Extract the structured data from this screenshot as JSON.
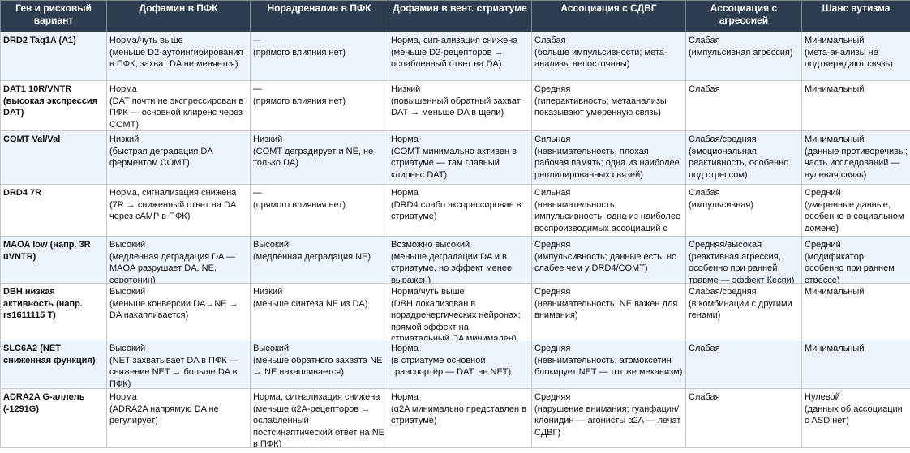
{
  "headers": [
    "Ген и рисковый вариант",
    "Дофамин в ПФК",
    "Норадреналин в ПФК",
    "Дофамин в вент. стриатуме",
    "Ассоциация с СДВГ",
    "Ассоциация с агрессией",
    "Шанс аутизма"
  ],
  "rows": [
    [
      "DRD2 Taq1A (A1)",
      "Норма/чуть выше\n(меньше D2-аутоингибирования в ПФК, захват DA не меняется)",
      "—\n(прямого влияния нет)",
      "Норма, сигнализация снижена\n(меньше D2-рецепторов → ослабленный ответ на DA)",
      "Слабая\n(больше импульсивности; мета-анализы непостоянны)",
      "Слабая\n(импульсивная агрессия)",
      "Минимальный\n(мета-анализы не подтверждают связь)"
    ],
    [
      "DAT1 10R/VNTR (высокая экспрессия DAT)",
      "Норма\n(DAT почти не экспрессирован в ПФК — основной клиренс через COMT)",
      "—\n(прямого влияния нет)",
      "Низкий\n(повышенный обратный захват DAT → меньше DA в щели)",
      "Средняя\n(гиперактивность; метаанализы показывают умеренную связь)",
      "Слабая",
      "Минимальный"
    ],
    [
      "COMT Val/Val",
      "Низкий\n(быстрая деградация DA ферментом COMT)",
      "Низкий\n(COMT деградирует и NE, не только DA)",
      "Норма\n(COMT минимально активен в стриатуме — там главный клиренс DAT)",
      "Сильная\n(невнимательность, плохая рабочая память; одна из наиболее реплицированных связей)",
      "Слабая/средняя\n(эмоциональная реактивность, особенно под стрессом)",
      "Минимальный\n(данные противоречивы; часть исследований — нулевая связь)"
    ],
    [
      "DRD4 7R",
      "Норма, сигнализация снижена\n(7R → сниженный ответ на DA через cAMP в ПФК)",
      "—\n(прямого влияния нет)",
      "Норма\n(DRD4 слабо экспрессирован в стриатуме)",
      "Сильная\n(невнимательность, импульсивность; одна из наиболее воспроизводимых ассоциаций с СДВГ)",
      "Слабая\n(импульсивная)",
      "Средний\n(умеренные данные, особенно в социальном домене)"
    ],
    [
      "MAOA low (напр. 3R uVNTR)",
      "Высокий\n(медленная деградация DA — MAOA разрушает DA, NE, серотонин)",
      "Высокий\n(медленная деградация NE)",
      "Возможно высокий\n(меньше деградации DA и в стриатуме, но эффект менее выражен)",
      "Средняя\n(импульсивность; данные есть, но слабее чем у DRD4/COMT)",
      "Средняя/высокая\n(реактивная агрессия, особенно при ранней травме — эффект Кеспи)",
      "Средний\n(модификатор, особенно при раннем стрессе)"
    ],
    [
      "DBH низкая активность (напр. rs1611115 T)",
      "Высокий\n(меньше конверсии DA→NE → DA накапливается)",
      "Низкий\n(меньше синтеза NE из DA)",
      "Норма/чуть выше\n(DBH локализован в норадренергических нейронах; прямой эффект на стриатальный DA минимален)",
      "Средняя\n(невнимательность; NE важен для внимания)",
      "Слабая/средняя\n(в комбинации с другими генами)",
      "Минимальный"
    ],
    [
      "SLC6A2 (NET сниженная функция)",
      "Высокий\n(NET захватывает DA в ПФК — снижение NET → больше DA в ПФК)",
      "Высокий\n(меньше обратного захвата NE → NE накапливается)",
      "Норма\n(в стриатуме основной транспортёр — DAT, не NET)",
      "Средняя\n(невнимательность; атомоксетин блокирует NET — тот же механизм)",
      "Слабая",
      "Минимальный"
    ],
    [
      "ADRA2A G-аллель (-1291G)",
      "Норма\n(ADRA2A напрямую DA не регулирует)",
      "Норма, сигнализация снижена\n(меньше α2A-рецепторов → ослабленный постсинаптический ответ на NE в ПФК)",
      "Норма\n(α2A минимально представлен в стриатуме)",
      "Средняя\n(нарушение внимания; гуанфацин/клонидин — агонисты α2A — лечат СДВГ)",
      "Слабая",
      "Нулевой\n(данных об ассоциации с ASD нет)"
    ]
  ],
  "colors": {
    "header_bg": "#2c3e50",
    "header_text": "#ffffff",
    "alt_row_bg": "#edf4fb",
    "border": "#c6c9cc"
  }
}
